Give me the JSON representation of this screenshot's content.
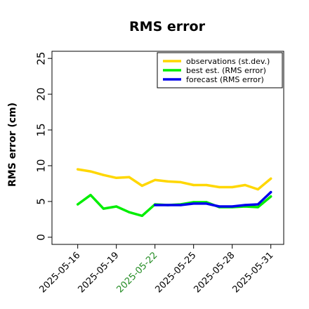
{
  "chart_data": {
    "type": "line",
    "title": "RMS error",
    "ylabel": "RMS error (cm)",
    "xlabel": "",
    "ylim": [
      -1,
      26
    ],
    "xlim": [
      "2025-05-14",
      "2025-06-01"
    ],
    "yticks": [
      "0",
      "5",
      "10",
      "15",
      "20",
      "25"
    ],
    "xticks": [
      {
        "date": "2025-05-16",
        "label": "2025-05-16",
        "color": "#000000"
      },
      {
        "date": "2025-05-19",
        "label": "2025-05-19",
        "color": "#000000"
      },
      {
        "date": "2025-05-22",
        "label": "2025-05-22",
        "color": "#228b22"
      },
      {
        "date": "2025-05-25",
        "label": "2025-05-25",
        "color": "#000000"
      },
      {
        "date": "2025-05-28",
        "label": "2025-05-28",
        "color": "#000000"
      },
      {
        "date": "2025-05-31",
        "label": "2025-05-31",
        "color": "#000000"
      }
    ],
    "grid": false,
    "legend": "top-right",
    "series": [
      {
        "name": "observations (st.dev.)",
        "color": "#ffd700",
        "x": [
          "2025-05-16",
          "2025-05-17",
          "2025-05-18",
          "2025-05-19",
          "2025-05-20",
          "2025-05-21",
          "2025-05-22",
          "2025-05-23",
          "2025-05-24",
          "2025-05-25",
          "2025-05-26",
          "2025-05-27",
          "2025-05-28",
          "2025-05-29",
          "2025-05-30",
          "2025-05-31"
        ],
        "values": [
          9.5,
          9.2,
          8.7,
          8.3,
          8.4,
          7.2,
          8.0,
          7.8,
          7.7,
          7.3,
          7.3,
          7.0,
          7.0,
          7.3,
          6.7,
          8.2
        ]
      },
      {
        "name": "best est. (RMS error)",
        "color": "#00ee00",
        "x": [
          "2025-05-16",
          "2025-05-17",
          "2025-05-18",
          "2025-05-19",
          "2025-05-20",
          "2025-05-21",
          "2025-05-22",
          "2025-05-23",
          "2025-05-24",
          "2025-05-25",
          "2025-05-26",
          "2025-05-27",
          "2025-05-28",
          "2025-05-29",
          "2025-05-30",
          "2025-05-31"
        ],
        "values": [
          4.6,
          5.9,
          4.0,
          4.3,
          3.5,
          3.0,
          4.6,
          4.5,
          4.6,
          4.9,
          4.9,
          4.2,
          4.2,
          4.3,
          4.2,
          5.7
        ]
      },
      {
        "name": "forecast (RMS error)",
        "color": "#0000ee",
        "x": [
          "2025-05-22",
          "2025-05-23",
          "2025-05-24",
          "2025-05-25",
          "2025-05-26",
          "2025-05-27",
          "2025-05-28",
          "2025-05-29",
          "2025-05-30",
          "2025-05-31"
        ],
        "values": [
          4.5,
          4.5,
          4.5,
          4.7,
          4.7,
          4.3,
          4.3,
          4.5,
          4.6,
          6.3
        ]
      }
    ]
  }
}
